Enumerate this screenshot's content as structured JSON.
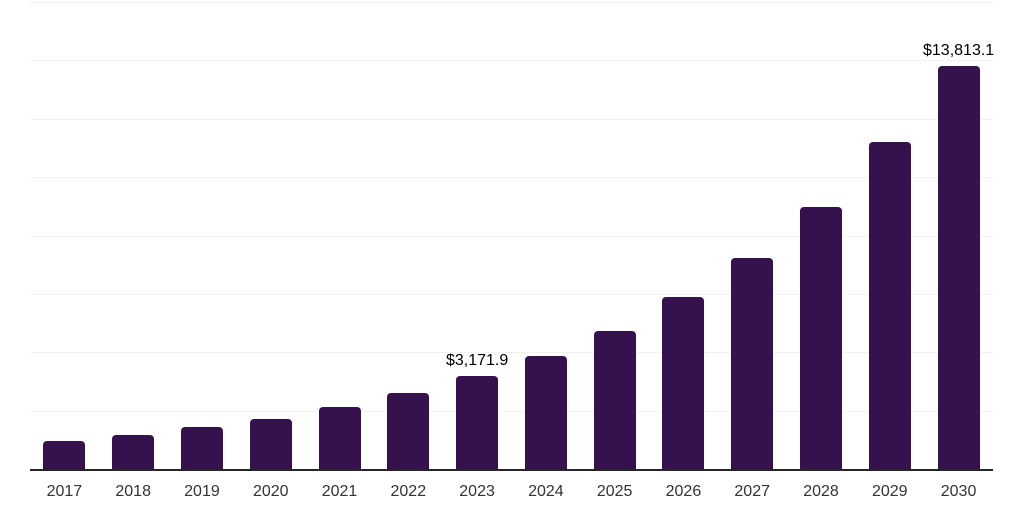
{
  "chart_data": {
    "type": "bar",
    "title": "",
    "xlabel": "",
    "ylabel": "",
    "categories": [
      "2017",
      "2018",
      "2019",
      "2020",
      "2021",
      "2022",
      "2023",
      "2024",
      "2025",
      "2026",
      "2027",
      "2028",
      "2029",
      "2030"
    ],
    "values": [
      970,
      1160,
      1425,
      1730,
      2120,
      2600,
      3171.9,
      3870,
      4740,
      5890,
      7240,
      8980,
      11220,
      13813.1
    ],
    "data_labels": {
      "2023": "$3,171.9",
      "2030": "$13,813.1"
    },
    "ylim": [
      0,
      16000
    ],
    "grid_step": 2000,
    "grid": true,
    "legend": "none",
    "y_tick_labels_visible": false,
    "colors": {
      "bar": "#35114d",
      "grid": "#f2f2f2",
      "axis": "#262626",
      "tick_label": "#333333",
      "data_label": "#000000",
      "background": "#ffffff"
    }
  }
}
